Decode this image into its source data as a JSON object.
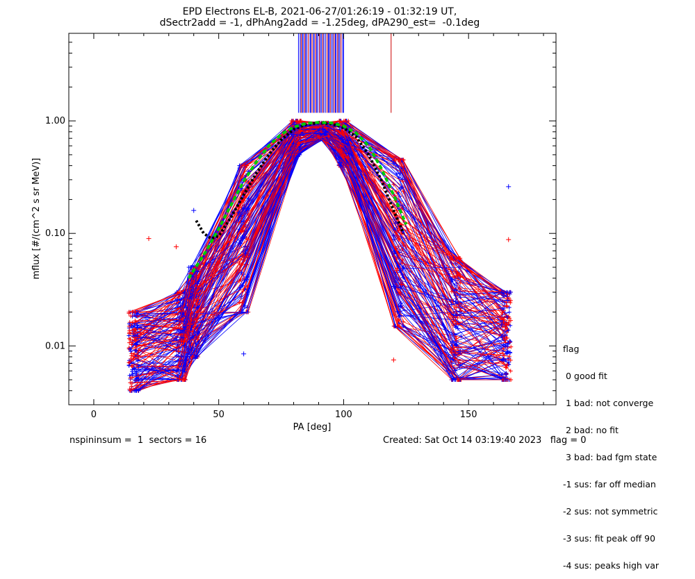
{
  "title_line1": "EPD Electrons EL-B, 2021-06-27/01:26:19 - 01:32:19 UT,",
  "title_line2": "dSectr2add = -1, dPhAng2add = -1.25deg, dPA290_est=  -0.1deg",
  "footer_left": "nspininsum =  1  sectors = 16",
  "footer_right": "Created: Sat Oct 14 03:19:40 2023   flag = 0",
  "legend": {
    "title": "flag",
    "items": [
      " 0 good fit",
      " 1 bad: not converge",
      " 2 bad: no fit",
      " 3 bad: bad fgm state",
      "-1 sus: far off median",
      "-2 sus: not symmetric",
      "-3 sus: fit peak off 90",
      "-4 sus: peaks high var"
    ]
  },
  "colors": {
    "series_red": "#ff0000",
    "series_blue": "#0000ff",
    "median_fit": "#00cc00",
    "reference_fit": "#000000",
    "peak_lines_blue": "#0000ff",
    "peak_lines_red": "#cc0000"
  },
  "chart_data": {
    "type": "line",
    "title": "EPD Electrons EL-B, 2021-06-27/01:26:19 - 01:32:19 UT, dSectr2add = -1, dPhAng2add = -1.25deg, dPA290_est=  -0.1deg",
    "xlabel": "PA [deg]",
    "ylabel": "mflux [#/(cm^2 s sr MeV)]",
    "xlim": [
      -10,
      185
    ],
    "ylim": [
      0.003,
      6
    ],
    "yscale": "log",
    "xticks": [
      0,
      50,
      100,
      150
    ],
    "xtick_labels": [
      "0",
      "50",
      "100",
      "150"
    ],
    "yticks": [
      0.01,
      0.1,
      1.0
    ],
    "ytick_labels": [
      "0.01",
      "0.10",
      "1.00"
    ],
    "grid": false,
    "legend_position": "lower-right outside",
    "sector_pa": [
      16,
      35,
      40,
      60,
      81,
      92,
      100,
      122,
      145,
      165
    ],
    "profile_high": [
      0.02,
      0.03,
      0.05,
      0.4,
      1.0,
      0.96,
      1.0,
      0.45,
      0.06,
      0.03
    ],
    "profile_low": [
      0.004,
      0.005,
      0.008,
      0.02,
      0.5,
      0.7,
      0.4,
      0.015,
      0.005,
      0.005
    ],
    "sample_curves": {
      "red": 80,
      "blue": 80
    },
    "outliers": [
      {
        "x": 22,
        "y": 0.09,
        "series": "red"
      },
      {
        "x": 33,
        "y": 0.076,
        "series": "red"
      },
      {
        "x": 40,
        "y": 0.16,
        "series": "blue"
      },
      {
        "x": 166,
        "y": 0.26,
        "series": "blue"
      },
      {
        "x": 166,
        "y": 0.088,
        "series": "red"
      },
      {
        "x": 120,
        "y": 0.0075,
        "series": "red"
      },
      {
        "x": 60,
        "y": 0.0085,
        "series": "blue"
      }
    ],
    "median_fit": {
      "name": "",
      "x": [
        38,
        45,
        50,
        55,
        60,
        65,
        70,
        75,
        80,
        85,
        90,
        95,
        100,
        105,
        110,
        115,
        120,
        125
      ],
      "y": [
        0.04,
        0.07,
        0.11,
        0.18,
        0.29,
        0.43,
        0.6,
        0.76,
        0.88,
        0.95,
        0.97,
        0.96,
        0.9,
        0.78,
        0.6,
        0.38,
        0.22,
        0.12
      ]
    },
    "reference_fit": {
      "name": "",
      "x": [
        41,
        44,
        47,
        50,
        55,
        60,
        65,
        70,
        75,
        80,
        85,
        90,
        95,
        100,
        105,
        110,
        115,
        120,
        124
      ],
      "y": [
        0.13,
        0.1,
        0.09,
        0.095,
        0.14,
        0.22,
        0.34,
        0.5,
        0.68,
        0.84,
        0.93,
        0.96,
        0.94,
        0.87,
        0.72,
        0.5,
        0.3,
        0.16,
        0.1
      ]
    },
    "peak_markers": {
      "x_start": 82,
      "x_end": 100,
      "count": 38,
      "extra_red_x": [
        119
      ],
      "y_bottom": 1.18,
      "y_top": 6
    }
  }
}
